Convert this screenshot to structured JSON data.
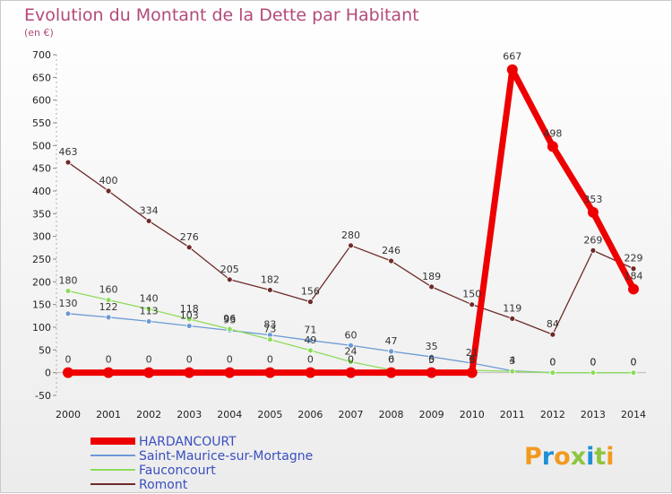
{
  "chart_data": {
    "type": "line",
    "title": "Evolution du Montant de la Dette par Habitant",
    "subtitle": "(en €)",
    "xlabel": "",
    "ylabel": "",
    "ylim": [
      -50,
      700
    ],
    "yticks": [
      -50,
      0,
      50,
      100,
      150,
      200,
      250,
      300,
      350,
      400,
      450,
      500,
      550,
      600,
      650,
      700
    ],
    "categories": [
      "2000",
      "2001",
      "2002",
      "2003",
      "2004",
      "2005",
      "2006",
      "2007",
      "2008",
      "2009",
      "2010",
      "2011",
      "2012",
      "2013",
      "2014"
    ],
    "series": [
      {
        "name": "HARDANCOURT",
        "color": "#ee0000",
        "values": [
          0,
          0,
          0,
          0,
          0,
          0,
          0,
          0,
          0,
          0,
          0,
          667,
          498,
          353,
          184
        ]
      },
      {
        "name": "Saint-Maurice-sur-Mortagne",
        "color": "#6b9ad4",
        "values": [
          130,
          122,
          113,
          103,
          93,
          83,
          71,
          60,
          47,
          35,
          21,
          4,
          0,
          0,
          0
        ]
      },
      {
        "name": "Fauconcourt",
        "color": "#8ddc5c",
        "values": [
          180,
          160,
          140,
          118,
          96,
          73,
          49,
          24,
          6,
          5,
          5,
          3,
          0,
          0,
          0
        ]
      },
      {
        "name": "Romont",
        "color": "#6e2a2a",
        "values": [
          463,
          400,
          334,
          276,
          205,
          182,
          156,
          280,
          246,
          189,
          150,
          119,
          84,
          269,
          229
        ]
      }
    ],
    "legend_position": "bottom-left",
    "grid": false
  },
  "logo": {
    "text": "Proxiti"
  }
}
